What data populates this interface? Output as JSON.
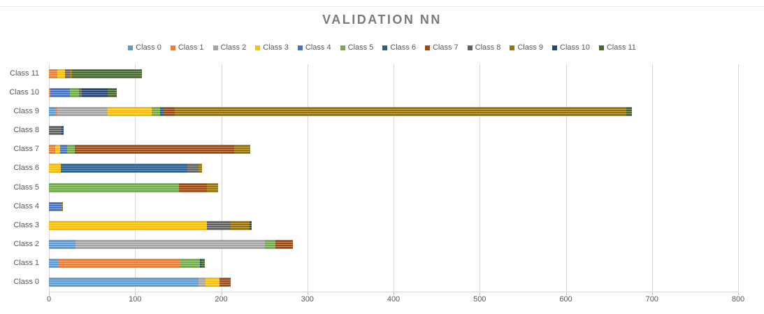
{
  "title": "VALIDATION NN",
  "axis": {
    "x_ticks": [
      0,
      100,
      200,
      300,
      400,
      500,
      600,
      700,
      800
    ],
    "xlim": [
      0,
      800
    ]
  },
  "chart_data": {
    "type": "bar",
    "orientation": "horizontal",
    "stacked": true,
    "title": "VALIDATION NN",
    "xlabel": "",
    "ylabel": "",
    "xlim": [
      0,
      800
    ],
    "x_ticks": [
      0,
      100,
      200,
      300,
      400,
      500,
      600,
      700,
      800
    ],
    "grid": true,
    "legend_position": "top",
    "categories": [
      "Class 0",
      "Class 1",
      "Class 2",
      "Class 3",
      "Class 4",
      "Class 5",
      "Class 6",
      "Class 7",
      "Class 8",
      "Class 9",
      "Class 10",
      "Class 11"
    ],
    "category_axis_order": "Class 11 at top, Class 0 at bottom",
    "series": [
      {
        "name": "Class 0",
        "color": "#5B9BD5",
        "values": [
          174,
          11,
          31,
          0,
          0,
          0,
          0,
          0,
          0,
          7,
          0,
          0
        ]
      },
      {
        "name": "Class 1",
        "color": "#ED7D31",
        "values": [
          0,
          141,
          0,
          0,
          0,
          0,
          0,
          7,
          0,
          3,
          2,
          10
        ]
      },
      {
        "name": "Class 2",
        "color": "#A5A5A5",
        "values": [
          8,
          0,
          220,
          0,
          0,
          0,
          0,
          0,
          0,
          58,
          0,
          0
        ]
      },
      {
        "name": "Class 3",
        "color": "#FFC000",
        "values": [
          16,
          0,
          0,
          183,
          0,
          0,
          14,
          6,
          0,
          51,
          0,
          9
        ]
      },
      {
        "name": "Class 4",
        "color": "#4472C4",
        "values": [
          0,
          0,
          0,
          0,
          14,
          0,
          0,
          8,
          0,
          0,
          22,
          0
        ]
      },
      {
        "name": "Class 5",
        "color": "#70AD47",
        "values": [
          0,
          23,
          12,
          0,
          0,
          151,
          0,
          9,
          0,
          10,
          11,
          0
        ]
      },
      {
        "name": "Class 6",
        "color": "#255E91",
        "values": [
          0,
          0,
          0,
          0,
          0,
          0,
          147,
          0,
          0,
          3,
          0,
          0
        ]
      },
      {
        "name": "Class 7",
        "color": "#9E480E",
        "values": [
          13,
          0,
          20,
          0,
          0,
          32,
          0,
          185,
          0,
          14,
          0,
          0
        ]
      },
      {
        "name": "Class 8",
        "color": "#636363",
        "values": [
          0,
          0,
          0,
          28,
          0,
          0,
          13,
          0,
          15,
          0,
          3,
          5
        ]
      },
      {
        "name": "Class 9",
        "color": "#997300",
        "values": [
          0,
          0,
          0,
          22,
          2,
          13,
          4,
          19,
          0,
          524,
          0,
          3
        ]
      },
      {
        "name": "Class 10",
        "color": "#264478",
        "values": [
          0,
          2,
          0,
          2,
          0,
          0,
          0,
          0,
          2,
          0,
          30,
          0
        ]
      },
      {
        "name": "Class 11",
        "color": "#43682B",
        "values": [
          0,
          4,
          0,
          0,
          0,
          0,
          0,
          0,
          0,
          7,
          11,
          81
        ]
      }
    ],
    "row_totals": {
      "Class 0": 211,
      "Class 1": 181,
      "Class 2": 283,
      "Class 3": 235,
      "Class 4": 16,
      "Class 5": 196,
      "Class 6": 178,
      "Class 7": 234,
      "Class 8": 17,
      "Class 9": 677,
      "Class 10": 79,
      "Class 11": 108
    }
  },
  "colors": {
    "gridline": "#d9d9d9",
    "axis_text": "#595959",
    "title_text": "#7b7b7b",
    "background": "#ffffff"
  }
}
